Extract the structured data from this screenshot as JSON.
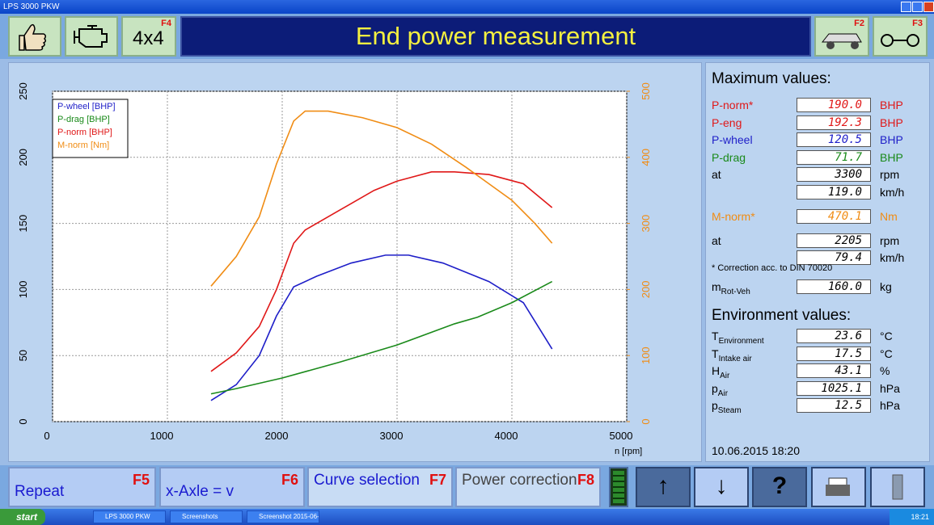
{
  "window": {
    "title": "LPS 3000 PKW"
  },
  "toolbar": {
    "f4": "F4",
    "four_by_four": "4x4",
    "title": "End power measurement",
    "f2": "F2",
    "f3": "F3"
  },
  "chart_data": {
    "type": "line",
    "x_label": "n [rpm]",
    "xlim": [
      0,
      5000
    ],
    "xticks": [
      0,
      1000,
      2000,
      3000,
      4000,
      5000
    ],
    "ylim": [
      0,
      250
    ],
    "yticks": [
      0,
      50,
      100,
      150,
      200,
      250
    ],
    "y2lim": [
      0,
      500
    ],
    "y2ticks": [
      0,
      100,
      200,
      300,
      400,
      500
    ],
    "y2color": "#f08c14",
    "grid": true,
    "legend": "upper-left",
    "series": [
      {
        "name": "P-wheel [BHP]",
        "color": "#1e1ec8",
        "x": [
          1380,
          1600,
          1800,
          1950,
          2100,
          2300,
          2600,
          2900,
          3100,
          3400,
          3800,
          4100,
          4350
        ],
        "values": [
          16,
          28,
          50,
          80,
          102,
          110,
          120,
          126,
          126,
          120,
          106,
          90,
          55
        ]
      },
      {
        "name": "P-drag [BHP]",
        "color": "#1a8a1a",
        "x": [
          1380,
          1600,
          2000,
          2500,
          3000,
          3500,
          3700,
          4000,
          4350
        ],
        "values": [
          21,
          25,
          33,
          45,
          58,
          74,
          79,
          90,
          106
        ]
      },
      {
        "name": "P-norm [BHP]",
        "color": "#e01818",
        "x": [
          1380,
          1600,
          1800,
          1950,
          2100,
          2200,
          2500,
          2800,
          3000,
          3300,
          3500,
          3800,
          4100,
          4350
        ],
        "values": [
          38,
          52,
          72,
          100,
          135,
          145,
          160,
          175,
          182,
          189,
          189,
          187,
          180,
          162
        ]
      },
      {
        "name": "M-norm [Nm]",
        "color": "#f08c14",
        "axis": "y2",
        "x": [
          1380,
          1600,
          1800,
          1950,
          2100,
          2200,
          2400,
          2700,
          3000,
          3300,
          3600,
          3800,
          4000,
          4200,
          4350
        ],
        "values": [
          205,
          250,
          310,
          390,
          455,
          470,
          470,
          460,
          445,
          420,
          385,
          360,
          335,
          300,
          270
        ]
      }
    ]
  },
  "max_values": {
    "title": "Maximum values:",
    "rows": [
      {
        "label": "P-norm*",
        "value": "190.0",
        "unit": "BHP",
        "color": "#e01818"
      },
      {
        "label": "P-eng",
        "value": "192.3",
        "unit": "BHP",
        "color": "#e01818"
      },
      {
        "label": "P-wheel",
        "value": "120.5",
        "unit": "BHP",
        "color": "#1e1ec8"
      },
      {
        "label": "P-drag",
        "value": "71.7",
        "unit": "BHP",
        "color": "#1a8a1a"
      },
      {
        "label": "at",
        "value": "3300",
        "unit": "rpm",
        "color": "#000000"
      },
      {
        "value": "119.0",
        "unit": "km/h",
        "color": "#000000"
      },
      {
        "label": "M-norm*",
        "value": "470.1",
        "unit": "Nm",
        "color": "#f08c14"
      },
      {
        "label": "at",
        "value": "2205",
        "unit": "rpm",
        "color": "#000000"
      },
      {
        "value": "79.4",
        "unit": "km/h",
        "color": "#000000"
      }
    ],
    "note": "* Correction acc. to DIN 70020",
    "mass": {
      "symbol": "m",
      "sub": "Rot-Veh",
      "value": "160.0",
      "unit": "kg"
    }
  },
  "environment": {
    "title": "Environment values:",
    "rows": [
      {
        "symbol": "T",
        "sub": "Environment",
        "value": "23.6",
        "unit": "°C"
      },
      {
        "symbol": "T",
        "sub": "Intake air",
        "value": "17.5",
        "unit": "°C"
      },
      {
        "symbol": "H",
        "sub": "Air",
        "value": "43.1",
        "unit": "%"
      },
      {
        "symbol": "p",
        "sub": "Air",
        "value": "1025.1",
        "unit": "hPa"
      },
      {
        "symbol": "p",
        "sub": "Steam",
        "value": "12.5",
        "unit": "hPa"
      }
    ]
  },
  "timestamp": "10.06.2015  18:20",
  "bottom_buttons": [
    {
      "label": "Repeat",
      "key": "F5"
    },
    {
      "label": "x-Axle = v",
      "key": "F6"
    },
    {
      "label": "Curve selection",
      "key": "F7"
    },
    {
      "label": "Power correction",
      "key": "F8"
    }
  ],
  "taskbar": {
    "start": "start",
    "tasks": [
      "LPS 3000 PKW",
      "Screenshots",
      "Screenshot 2015-06-..."
    ],
    "clock": "18:21"
  }
}
